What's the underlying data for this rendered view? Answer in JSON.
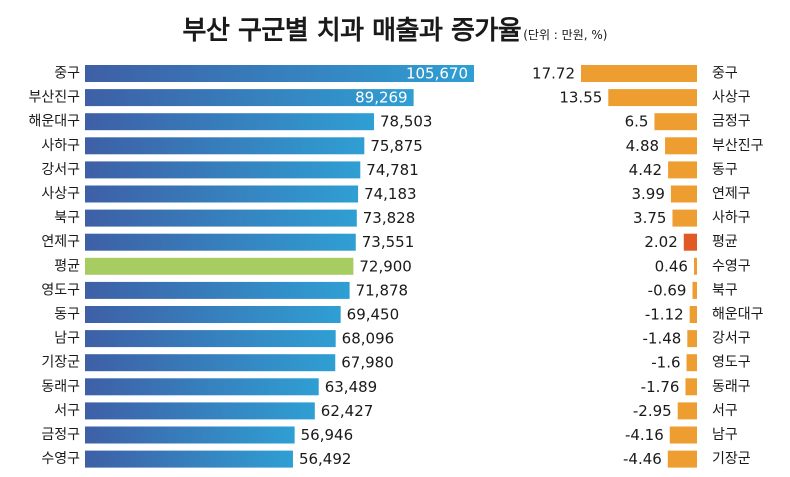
{
  "title": "부산 구군별 치과 매출과 증가율",
  "unit": "(단위 : 만원, %)",
  "colors": {
    "bar_dark": "#3e5fa6",
    "bar_light": "#2f9fd3",
    "average": "#a6cc62",
    "growth_bar": "#ee9e31",
    "growth_average": "#e05a26"
  },
  "chart_data": [
    {
      "type": "bar",
      "orientation": "horizontal",
      "title": "",
      "categories": [
        "중구",
        "부산진구",
        "해운대구",
        "사하구",
        "강서구",
        "사상구",
        "북구",
        "연제구",
        "평균",
        "영도구",
        "동구",
        "남구",
        "기장군",
        "동래구",
        "서구",
        "금정구",
        "수영구"
      ],
      "values": [
        105670,
        89269,
        78503,
        75875,
        74781,
        74183,
        73828,
        73551,
        72900,
        71878,
        69450,
        68096,
        67980,
        63489,
        62427,
        56946,
        56492
      ],
      "value_labels": [
        "105,670",
        "89,269",
        "78,503",
        "75,875",
        "74,781",
        "74,183",
        "73,828",
        "73,551",
        "72,900",
        "71,878",
        "69,450",
        "68,096",
        "67,980",
        "63,489",
        "62,427",
        "56,946",
        "56,492"
      ],
      "highlight": "평균",
      "xlim": [
        0,
        105670
      ],
      "grid": false,
      "legend": "none"
    },
    {
      "type": "bar",
      "orientation": "horizontal",
      "title": "",
      "categories": [
        "중구",
        "사상구",
        "금정구",
        "부산진구",
        "동구",
        "연제구",
        "사하구",
        "평균",
        "수영구",
        "북구",
        "해운대구",
        "강서구",
        "영도구",
        "동래구",
        "서구",
        "남구",
        "기장군"
      ],
      "values": [
        17.72,
        13.55,
        6.5,
        4.88,
        4.42,
        3.99,
        3.75,
        2.02,
        0.46,
        -0.69,
        -1.12,
        -1.48,
        -1.6,
        -1.76,
        -2.95,
        -4.16,
        -4.46
      ],
      "value_labels": [
        "17.72",
        "13.55",
        "6.5",
        "4.88",
        "4.42",
        "3.99",
        "3.75",
        "2.02",
        "0.46",
        "-0.69",
        "-1.12",
        "-1.48",
        "-1.6",
        "-1.76",
        "-2.95",
        "-4.16",
        "-4.46"
      ],
      "highlight": "평균",
      "bar_length": "absolute value",
      "grid": false,
      "legend": "none"
    }
  ]
}
